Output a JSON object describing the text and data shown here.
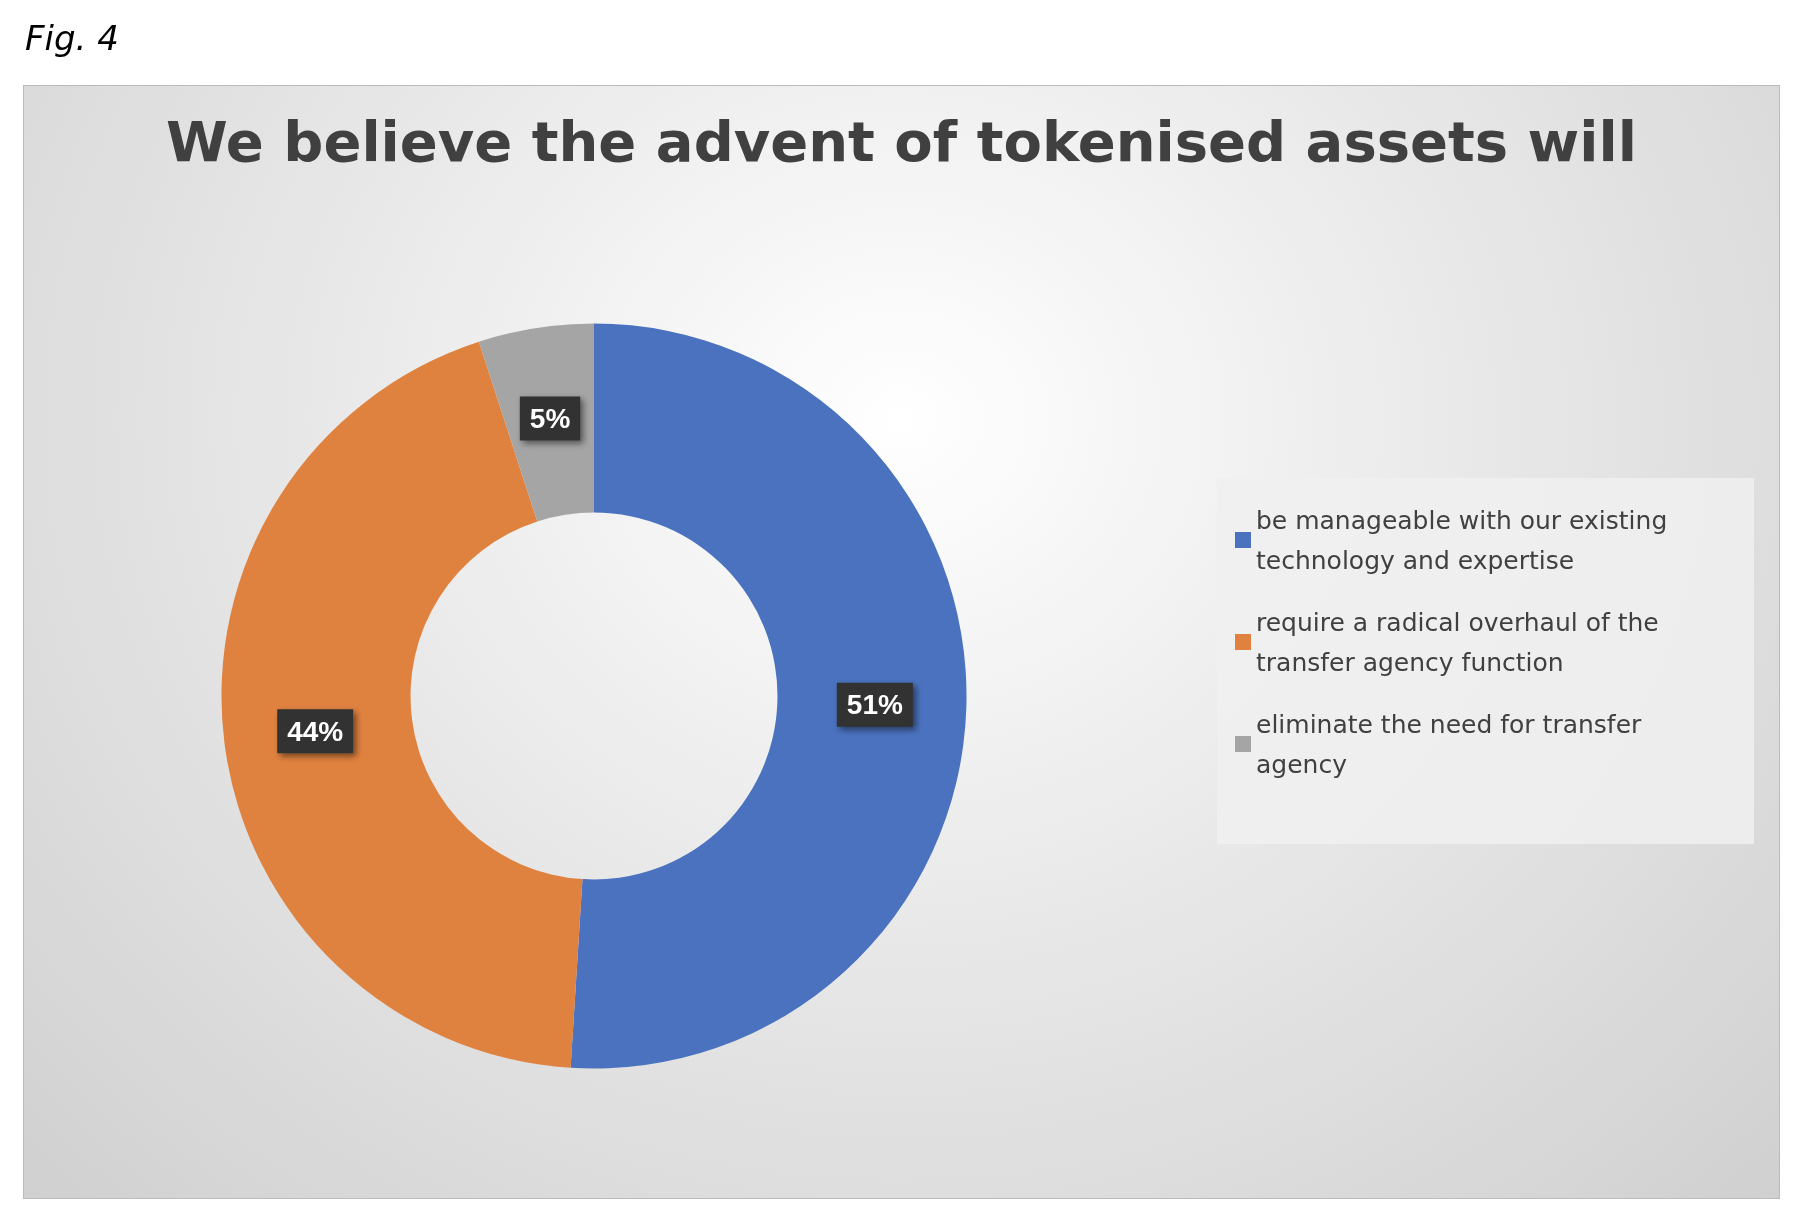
{
  "chart_data": {
    "type": "donut",
    "title": "We believe the advent of tokenised assets will",
    "annotations": [
      "Fig. 4"
    ],
    "categories": [
      "be manageable with our existing technology and expertise",
      "require a radical overhaul of the transfer agency function",
      "eliminate the need for transfer agency"
    ],
    "values": [
      51,
      44,
      5
    ],
    "value_labels": [
      "51%",
      "44%",
      "5%"
    ],
    "colors": [
      "#4a72be",
      "#e0823f",
      "#a5a5a5"
    ],
    "legend": "right"
  }
}
